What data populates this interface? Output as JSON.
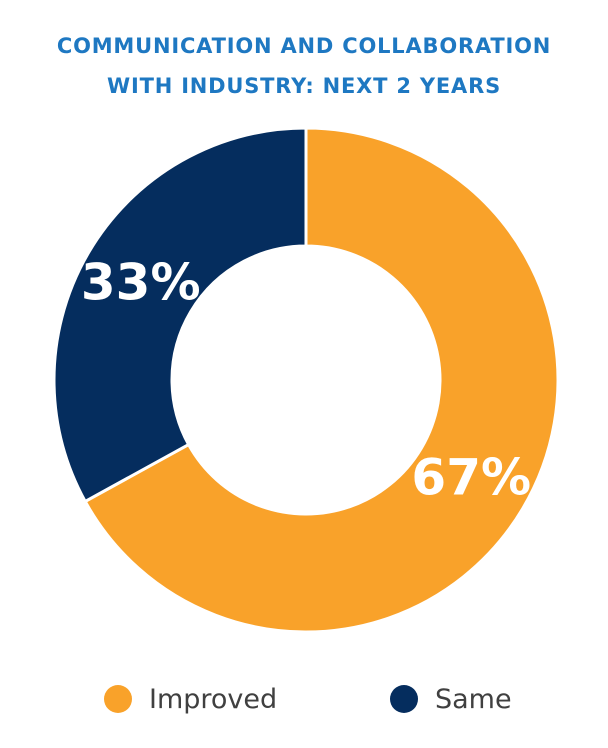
{
  "title_lines": [
    "COMMUNICATION AND COLLABORATION",
    "WITH INDUSTRY: NEXT 2 YEARS"
  ],
  "colors": {
    "title": "#1E78C2",
    "improved": "#F9A22A",
    "same": "#052D5E",
    "data_label": "#ffffff"
  },
  "chart_data": {
    "type": "pie",
    "title": "COMMUNICATION AND COLLABORATION WITH INDUSTRY: NEXT 2 YEARS",
    "donut": true,
    "categories": [
      "Improved",
      "Same"
    ],
    "values": [
      67,
      33
    ],
    "labels": [
      "67%",
      "33%"
    ],
    "colors": [
      "#F9A22A",
      "#052D5E"
    ],
    "legend_position": "bottom"
  },
  "legend": [
    {
      "label": "Improved",
      "color": "#F9A22A"
    },
    {
      "label": "Same",
      "color": "#052D5E"
    }
  ]
}
